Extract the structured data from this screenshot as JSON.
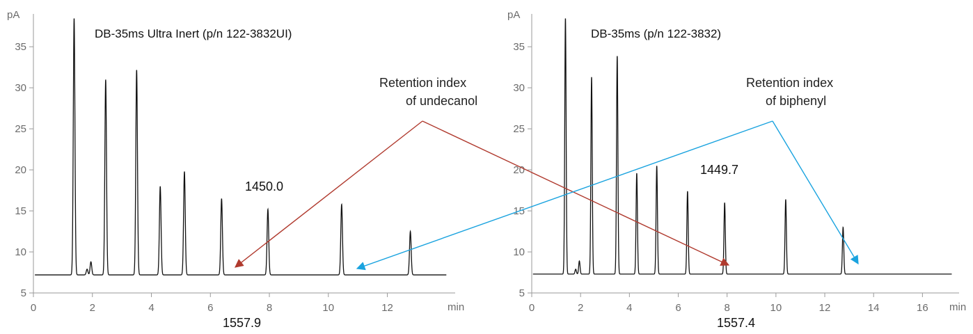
{
  "colors": {
    "trace": "#111111",
    "axis": "#9a9a9a",
    "undecanol_arrow": "#b03a2e",
    "biphenyl_arrow": "#1aa3df"
  },
  "annotations": {
    "undecanol": "Retention index\nof undecanol",
    "biphenyl": "Retention index\nof biphenyl"
  },
  "chart_data": [
    {
      "type": "line",
      "title": "DB-35ms Ultra Inert (p/n 122-3832UI)",
      "xlabel": "min",
      "ylabel": "pA",
      "xlim": [
        0,
        14.3
      ],
      "ylim": [
        5,
        39
      ],
      "x_ticks": [
        "0",
        "2",
        "4",
        "6",
        "8",
        "10",
        "12"
      ],
      "y_ticks": [
        "5",
        "10",
        "15",
        "20",
        "25",
        "30",
        "35"
      ],
      "baseline": 7.2,
      "peaks": [
        {
          "t": 1.38,
          "h": 38.5
        },
        {
          "t": 1.82,
          "h": 7.9
        },
        {
          "t": 1.95,
          "h": 8.8
        },
        {
          "t": 2.45,
          "h": 31.0
        },
        {
          "t": 3.5,
          "h": 32.2
        },
        {
          "t": 4.3,
          "h": 18.0
        },
        {
          "t": 5.12,
          "h": 19.8
        },
        {
          "t": 6.38,
          "h": 16.5
        },
        {
          "t": 7.95,
          "h": 15.2
        },
        {
          "t": 10.45,
          "h": 15.8
        },
        {
          "t": 12.78,
          "h": 12.5
        }
      ],
      "retention_indices": [
        {
          "label": "1450.0"
        },
        {
          "label": "1557.9"
        }
      ]
    },
    {
      "type": "line",
      "title": "DB-35ms (p/n 122-3832)",
      "xlabel": "min",
      "ylabel": "pA",
      "xlim": [
        0,
        17.5
      ],
      "ylim": [
        5,
        39
      ],
      "x_ticks": [
        "0",
        "2",
        "4",
        "6",
        "8",
        "10",
        "12",
        "14",
        "16"
      ],
      "y_ticks": [
        "5",
        "10",
        "15",
        "20",
        "25",
        "30",
        "35"
      ],
      "baseline": 7.3,
      "peaks": [
        {
          "t": 1.38,
          "h": 38.5
        },
        {
          "t": 1.8,
          "h": 7.9
        },
        {
          "t": 1.95,
          "h": 8.9
        },
        {
          "t": 2.45,
          "h": 31.3
        },
        {
          "t": 3.5,
          "h": 33.9
        },
        {
          "t": 4.3,
          "h": 19.6
        },
        {
          "t": 5.12,
          "h": 20.5
        },
        {
          "t": 6.38,
          "h": 17.4
        },
        {
          "t": 7.9,
          "h": 16.0
        },
        {
          "t": 10.4,
          "h": 16.4
        },
        {
          "t": 12.75,
          "h": 13.0
        }
      ],
      "retention_indices": [
        {
          "label": "1449.7"
        },
        {
          "label": "1557.4"
        }
      ]
    }
  ]
}
